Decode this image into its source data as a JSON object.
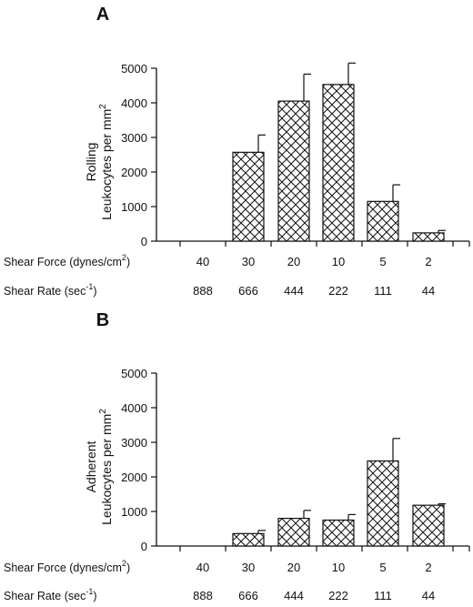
{
  "chart_data": [
    {
      "type": "bar",
      "panel": "A",
      "ylabel_line1": "Rolling",
      "ylabel_line2": "Leukocytes per mm",
      "ylabel_sup": "2",
      "ylim": [
        0,
        5000
      ],
      "yticks": [
        0,
        1000,
        2000,
        3000,
        4000,
        5000
      ],
      "categories": [
        "40",
        "30",
        "20",
        "10",
        "5",
        "2"
      ],
      "shear_rates": [
        "888",
        "666",
        "444",
        "222",
        "111",
        "44"
      ],
      "values": [
        0,
        2570,
        4050,
        4530,
        1150,
        240
      ],
      "errors": [
        0,
        500,
        780,
        620,
        480,
        70
      ],
      "grid": false,
      "legend": "none"
    },
    {
      "type": "bar",
      "panel": "B",
      "ylabel_line1": "Adherent",
      "ylabel_line2": "Leukocytes per mm",
      "ylabel_sup": "2",
      "ylim": [
        0,
        5000
      ],
      "yticks": [
        0,
        1000,
        2000,
        3000,
        4000,
        5000
      ],
      "categories": [
        "40",
        "30",
        "20",
        "10",
        "5",
        "2"
      ],
      "shear_rates": [
        "888",
        "666",
        "444",
        "222",
        "111",
        "44"
      ],
      "values": [
        0,
        360,
        800,
        750,
        2460,
        1180
      ],
      "errors": [
        0,
        90,
        230,
        160,
        650,
        40
      ],
      "grid": false,
      "legend": "none"
    }
  ],
  "row_labels": {
    "shear_force": "Shear Force (dynes/cm",
    "shear_force_sup": "2",
    "shear_force_close": ")",
    "shear_rate": "Shear Rate (sec",
    "shear_rate_sup": "-1",
    "shear_rate_close": ")"
  },
  "colors": {
    "bar_fill": "#ffffff",
    "hatch": "#111111",
    "axis": "#111111"
  }
}
